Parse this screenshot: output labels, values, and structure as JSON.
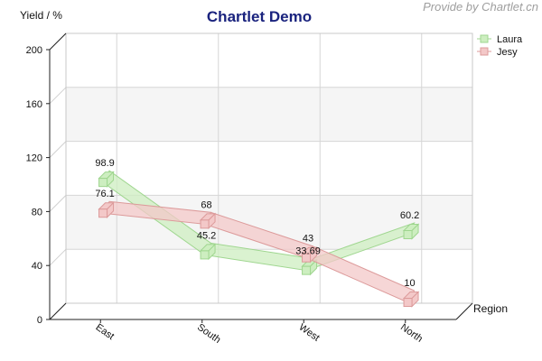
{
  "credit": "Provide by Chartlet.cn",
  "chart_data": {
    "type": "line",
    "style": "3d-ribbon",
    "title": "Chartlet Demo",
    "ylabel": "Yield / %",
    "xlabel": "Region",
    "categories": [
      "East",
      "South",
      "West",
      "North"
    ],
    "ylim": [
      0,
      200
    ],
    "yticks": [
      0,
      40,
      80,
      120,
      160,
      200
    ],
    "series": [
      {
        "name": "Laura",
        "values": [
          98.9,
          45.2,
          33.69,
          60.2
        ],
        "labels": [
          "98.9",
          "45.2",
          "33.69",
          "60.2"
        ],
        "color": "#cdeec0",
        "stroke": "#9fd68f"
      },
      {
        "name": "Jesy",
        "values": [
          76.1,
          68,
          43,
          10
        ],
        "labels": [
          "76.1",
          "68",
          "43",
          "10"
        ],
        "color": "#f3c8c8",
        "stroke": "#dc9a9a"
      }
    ],
    "legend_position": "top-right",
    "grid": true,
    "bands": [
      "#f5f5f5",
      "#ffffff"
    ]
  }
}
